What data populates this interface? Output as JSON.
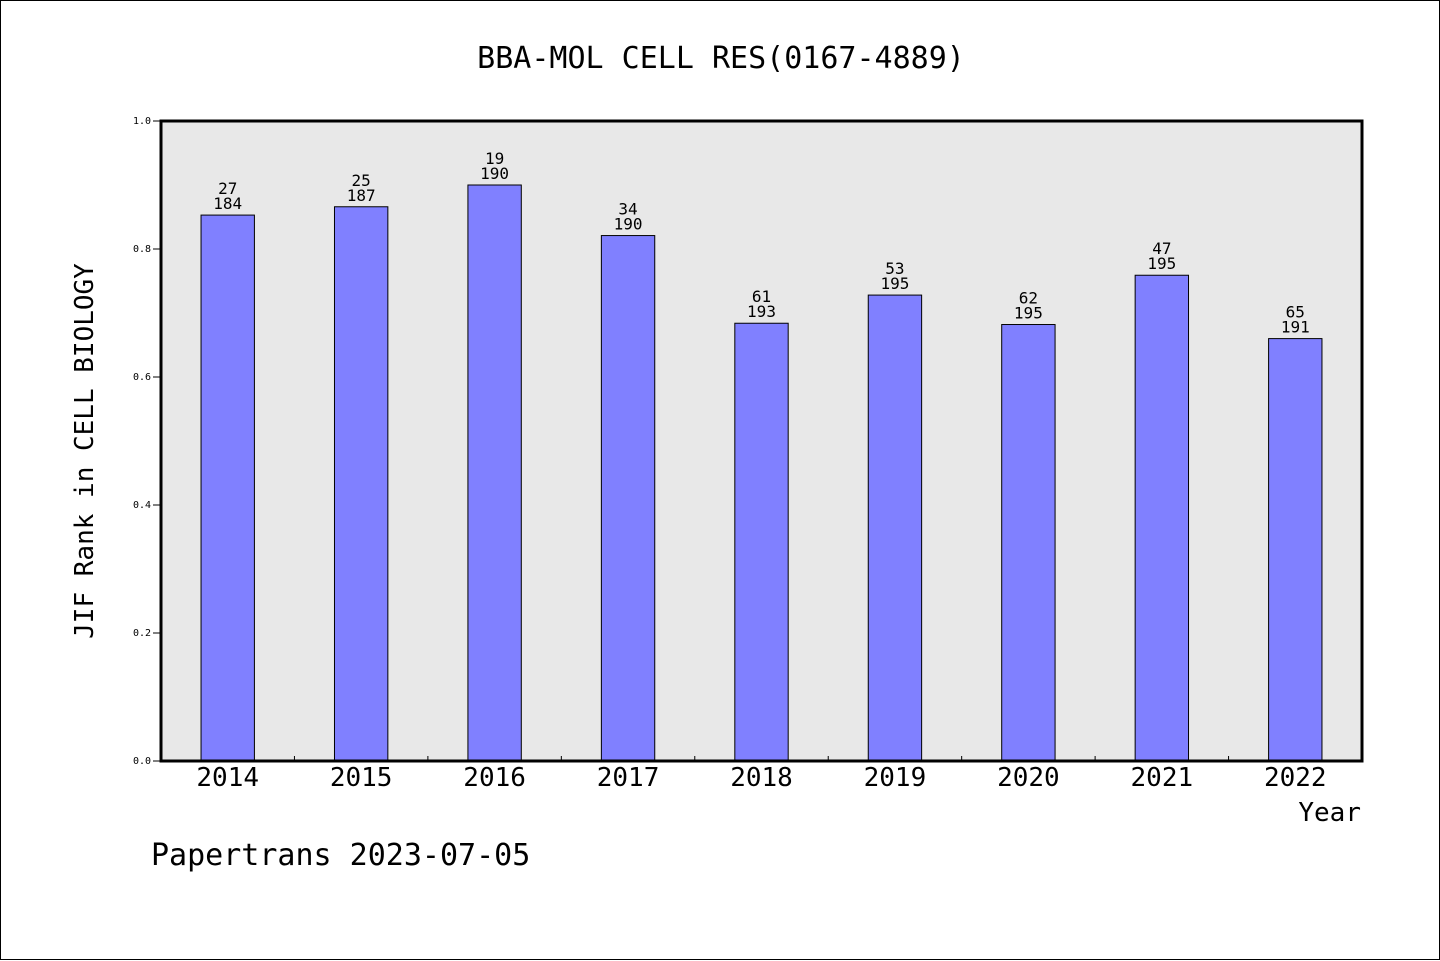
{
  "chart_data": {
    "type": "bar",
    "title": "BBA-MOL CELL RES(0167-4889)",
    "xlabel": "Year",
    "ylabel": "JIF Rank in CELL BIOLOGY",
    "footer": "Papertrans 2023-07-05",
    "categories": [
      "2014",
      "2015",
      "2016",
      "2017",
      "2018",
      "2019",
      "2020",
      "2021",
      "2022"
    ],
    "values": [
      0.853,
      0.866,
      0.9,
      0.821,
      0.684,
      0.728,
      0.682,
      0.759,
      0.66
    ],
    "rank": [
      "27",
      "25",
      "19",
      "34",
      "61",
      "53",
      "62",
      "47",
      "65"
    ],
    "total": [
      "184",
      "187",
      "190",
      "190",
      "193",
      "195",
      "195",
      "195",
      "191"
    ],
    "ylim": [
      0,
      1.0
    ],
    "yticks": [
      "0.0",
      "0.2",
      "0.4",
      "0.6",
      "0.8",
      "1.0"
    ],
    "grid": false,
    "colors": {
      "bar": "#8080ff",
      "plot_background": "#e8e8e8",
      "axis": "#000000"
    }
  }
}
